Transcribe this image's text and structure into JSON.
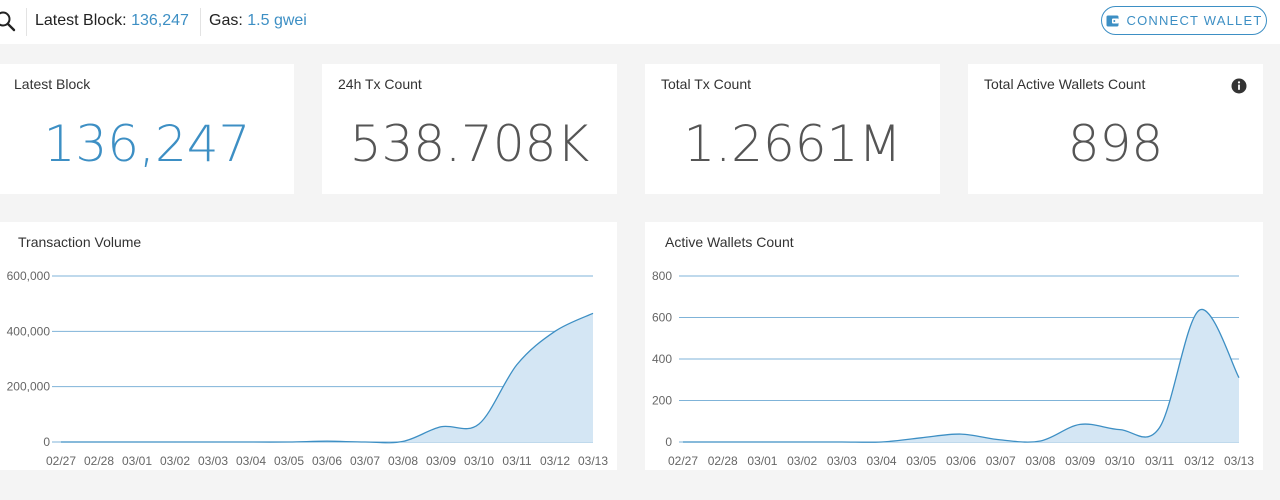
{
  "header": {
    "latest_block_label": "Latest Block:",
    "latest_block_value": "136,247",
    "gas_label": "Gas:",
    "gas_value": "1.5 gwei",
    "connect_label": "CONNECT WALLET"
  },
  "stats": [
    {
      "title": "Latest Block",
      "value": "136,247"
    },
    {
      "title": "24h Tx Count",
      "value": "538.708K"
    },
    {
      "title": "Total Tx Count",
      "value": "1.2661M"
    },
    {
      "title": "Total Active Wallets Count",
      "value": "898"
    }
  ],
  "colors": {
    "accent": "#3d8fc4",
    "area_fill": "#d4e6f4",
    "grid": "#7fb3d8"
  },
  "icons": [
    "search-icon",
    "wallet-icon",
    "info-icon"
  ],
  "chart_data": [
    {
      "type": "area",
      "title": "Transaction Volume",
      "categories": [
        "02/27",
        "02/28",
        "03/01",
        "03/02",
        "03/03",
        "03/04",
        "03/05",
        "03/06",
        "03/07",
        "03/08",
        "03/09",
        "03/10",
        "03/11",
        "03/12",
        "03/13"
      ],
      "values": [
        0,
        0,
        0,
        0,
        0,
        0,
        0,
        3000,
        0,
        2000,
        55000,
        65000,
        280000,
        400000,
        465000
      ],
      "ylim": [
        0,
        600000
      ],
      "yticks": [
        0,
        200000,
        400000,
        600000
      ],
      "ytick_labels": [
        "0",
        "200,000",
        "400,000",
        "600,000"
      ],
      "grid": true
    },
    {
      "type": "area",
      "title": "Active Wallets Count",
      "categories": [
        "02/27",
        "02/28",
        "03/01",
        "03/02",
        "03/03",
        "03/04",
        "03/05",
        "03/06",
        "03/07",
        "03/08",
        "03/09",
        "03/10",
        "03/11",
        "03/12",
        "03/13"
      ],
      "values": [
        0,
        0,
        0,
        0,
        0,
        0,
        20,
        38,
        10,
        5,
        85,
        60,
        70,
        635,
        310
      ],
      "ylim": [
        0,
        800
      ],
      "yticks": [
        0,
        200,
        400,
        600,
        800
      ],
      "ytick_labels": [
        "0",
        "200",
        "400",
        "600",
        "800"
      ],
      "grid": true
    }
  ]
}
